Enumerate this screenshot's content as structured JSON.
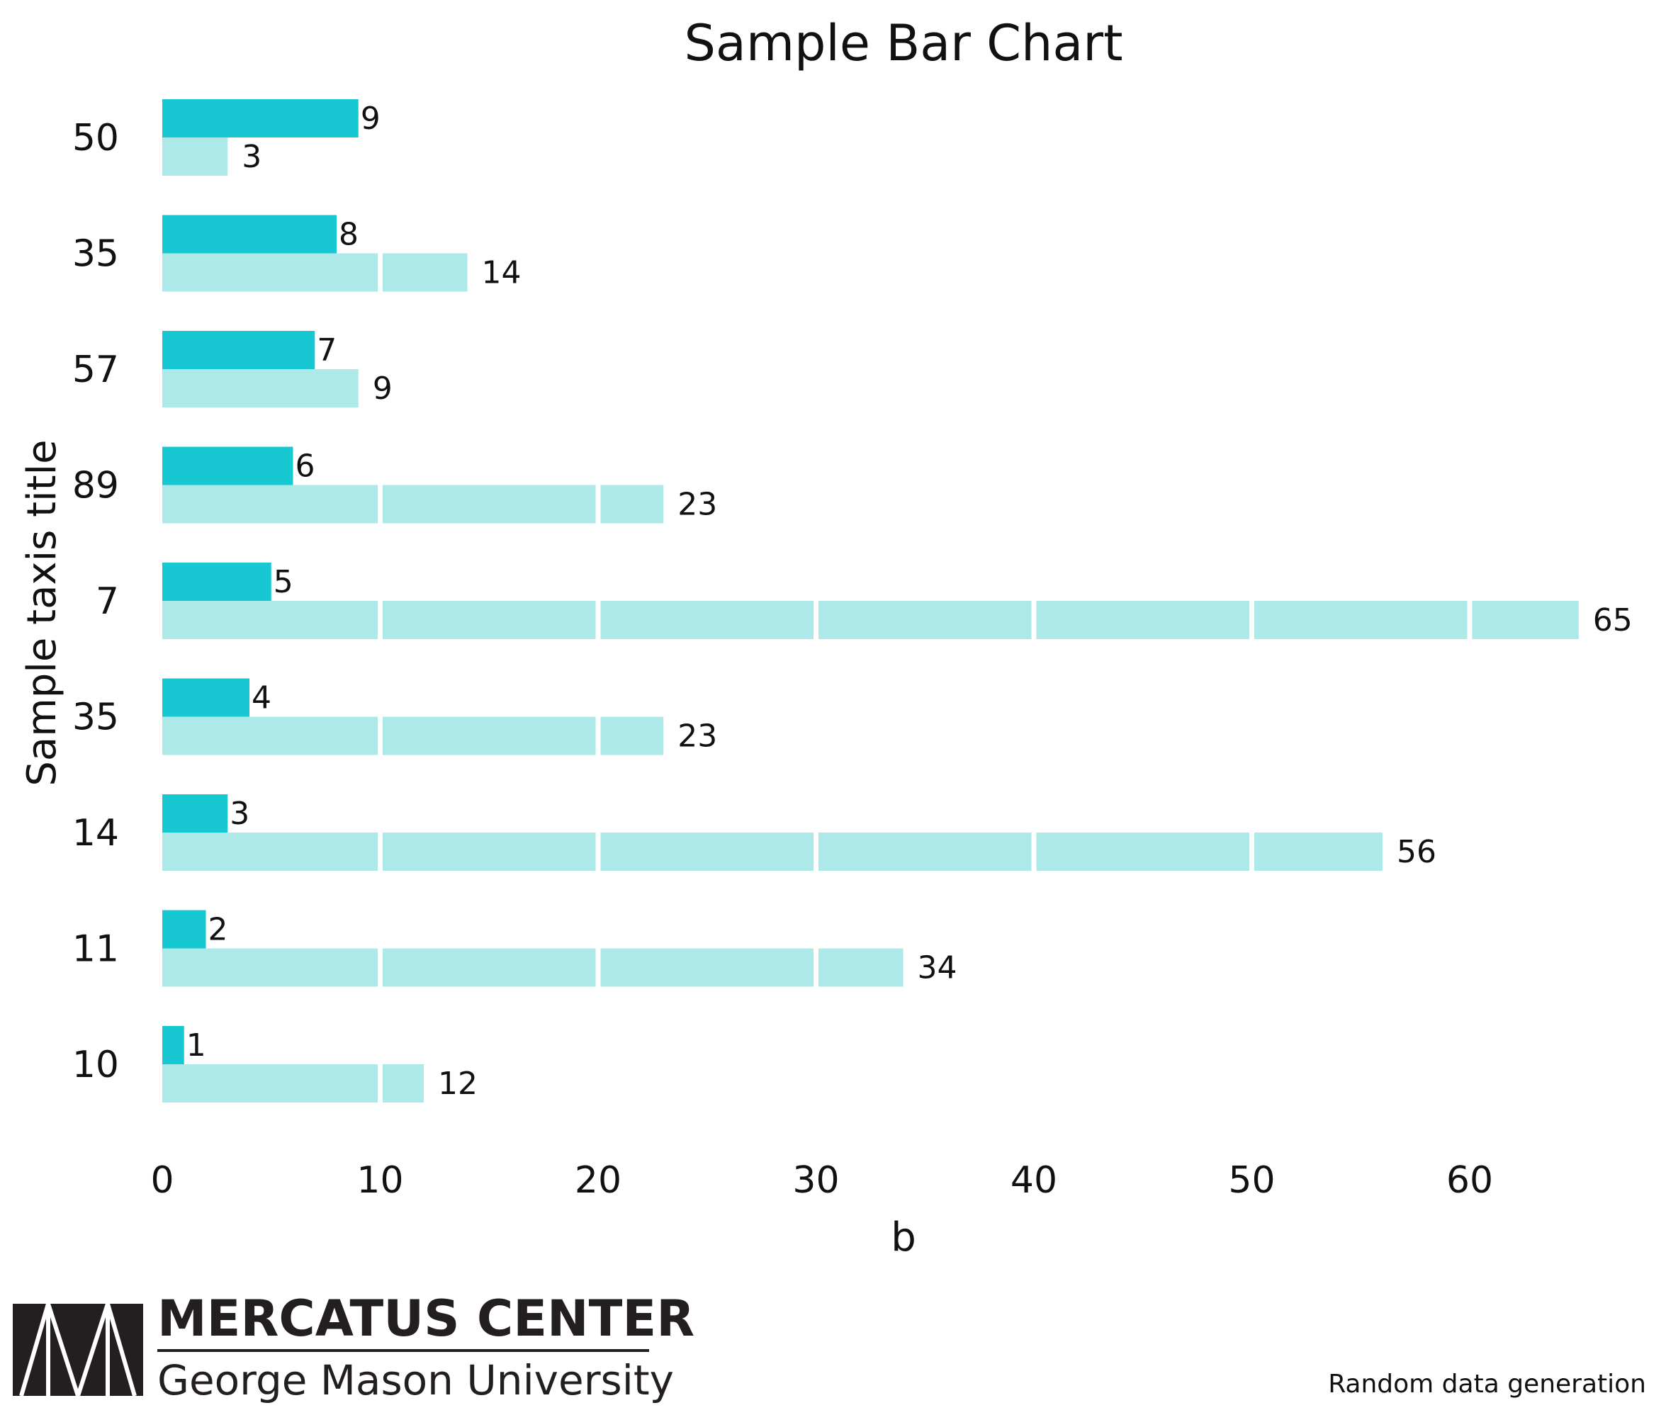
{
  "chart_data": {
    "type": "bar",
    "orientation": "horizontal",
    "title": "Sample Bar Chart",
    "xlabel": "b",
    "ylabel": "Sample taxis title",
    "categories": [
      "50",
      "35",
      "57",
      "89",
      "7",
      "35",
      "14",
      "11",
      "10"
    ],
    "series": [
      {
        "values": [
          9,
          8,
          7,
          6,
          5,
          4,
          3,
          2,
          1
        ],
        "color": "#17c7d2"
      },
      {
        "values": [
          3,
          14,
          9,
          23,
          65,
          23,
          56,
          34,
          12
        ],
        "color": "#ade9e8"
      }
    ],
    "xlim": [
      0,
      66
    ],
    "xticks": [
      0,
      10,
      20,
      30,
      40,
      50,
      60
    ],
    "grid": "vertical white gridlines over bars",
    "legend": "none"
  },
  "branding": {
    "org_name": "MERCATUS CENTER",
    "org_sub": "George Mason University"
  },
  "source_note": "Random data generation"
}
